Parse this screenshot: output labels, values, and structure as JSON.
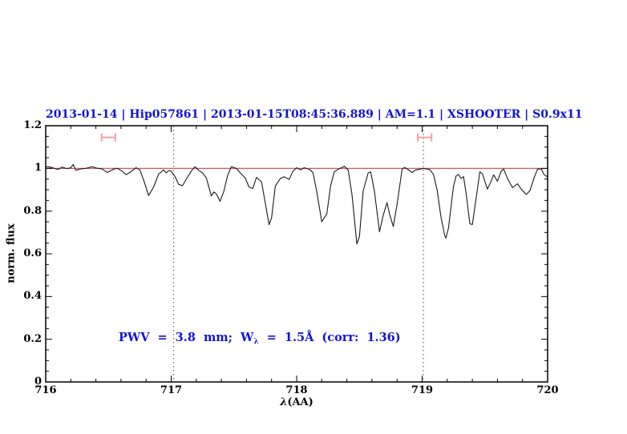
{
  "window": {
    "background": "#ffffff"
  },
  "title": {
    "text": "2013-01-14 | Hip057861 | 2013-01-15T08:45:36.889 | AM=1.1 | XSHOOTER | S0.9x11",
    "color": "#1414d2"
  },
  "annotation": {
    "prefix": "PWV = 3.8 mm; W",
    "subscript": "λ",
    "suffix": " = 1.5Å (corr: 1.36)",
    "color": "#1414d2"
  },
  "axes": {
    "ylabel": "norm. flux",
    "xlabel_lambda": "λ",
    "xlabel_rest": "(AA)",
    "x_tick_labels": [
      "716",
      "717",
      "718",
      "719",
      "720"
    ],
    "y_tick_labels": [
      "0",
      "0.2",
      "0.4",
      "0.6",
      "0.8",
      "1",
      "1.2"
    ]
  },
  "chart_data": {
    "type": "line",
    "title": "2013-01-14 | Hip057861 | 2013-01-15T08:45:36.889 | AM=1.1 | XSHOOTER | S0.9x11",
    "xlabel": "λ(AA)",
    "ylabel": "norm. flux",
    "xlim": [
      716,
      720
    ],
    "ylim": [
      0,
      1.2
    ],
    "x_major_ticks": [
      716,
      717,
      718,
      719,
      720
    ],
    "x_minor_step": 0.2,
    "y_major_ticks": [
      0,
      0.2,
      0.4,
      0.6,
      0.8,
      1.0,
      1.2
    ],
    "y_minor_step": 0.05,
    "grid": false,
    "frame_color": "#000000",
    "continuum": {
      "y": 1.0,
      "color": "#cc4747"
    },
    "vlines": [
      {
        "x": 717.02,
        "color": "#4a4a4a",
        "style": "dotted"
      },
      {
        "x": 719.01,
        "color": "#4a4a4a",
        "style": "dotted"
      }
    ],
    "range_markers": [
      {
        "x_center": 716.5,
        "x_halfwidth": 0.055,
        "y": 1.145,
        "cap_halfheight": 0.019,
        "color": "#f2a2a2"
      },
      {
        "x_center": 719.02,
        "x_halfwidth": 0.055,
        "y": 1.145,
        "cap_halfheight": 0.019,
        "color": "#f2a2a2"
      }
    ],
    "annotation_text": "PWV = 3.8 mm; W_λ = 1.5Å (corr: 1.36)",
    "annotation_xy": [
      716.58,
      0.19
    ],
    "series": [
      {
        "name": "telluric-spectrum",
        "color": "#1b1b1b",
        "x": [
          716.0,
          716.04,
          716.08,
          716.1,
          716.13,
          716.17,
          716.2,
          716.22,
          716.24,
          716.28,
          716.32,
          716.37,
          716.41,
          716.45,
          716.49,
          716.54,
          716.57,
          716.61,
          716.64,
          716.67,
          716.72,
          716.75,
          716.78,
          716.82,
          716.86,
          716.9,
          716.94,
          716.96,
          716.98,
          717.0,
          717.03,
          717.06,
          717.09,
          717.12,
          717.16,
          717.19,
          717.22,
          717.25,
          717.28,
          717.32,
          717.34,
          717.36,
          717.39,
          717.42,
          717.45,
          717.48,
          717.52,
          717.55,
          717.59,
          717.62,
          717.65,
          717.68,
          717.72,
          717.75,
          717.78,
          717.8,
          717.83,
          717.87,
          717.9,
          717.94,
          717.97,
          718.0,
          718.03,
          718.06,
          718.1,
          718.13,
          718.16,
          718.2,
          718.24,
          718.27,
          718.3,
          718.33,
          718.38,
          718.41,
          718.44,
          718.48,
          718.5,
          718.53,
          718.57,
          718.59,
          718.62,
          718.66,
          718.69,
          718.72,
          718.74,
          718.77,
          718.8,
          718.84,
          718.86,
          718.9,
          718.92,
          718.95,
          718.98,
          719.01,
          719.06,
          719.09,
          719.12,
          719.15,
          719.18,
          719.19,
          719.21,
          719.25,
          719.27,
          719.29,
          719.31,
          719.33,
          719.35,
          719.38,
          719.4,
          719.43,
          719.46,
          719.48,
          719.52,
          719.55,
          719.57,
          719.6,
          719.63,
          719.65,
          719.68,
          719.72,
          719.76,
          719.79,
          719.83,
          719.86,
          719.89,
          719.92,
          719.95,
          719.97,
          720.0
        ],
        "y": [
          1.008,
          1.006,
          0.998,
          0.996,
          1.006,
          0.999,
          1.004,
          1.018,
          0.991,
          0.998,
          1.0,
          1.008,
          1.001,
          0.997,
          0.981,
          0.996,
          1.001,
          0.987,
          0.971,
          0.981,
          1.003,
          0.993,
          0.946,
          0.873,
          0.913,
          0.973,
          0.993,
          0.979,
          0.99,
          0.987,
          0.962,
          0.925,
          0.919,
          0.949,
          0.987,
          1.008,
          0.991,
          0.979,
          0.956,
          0.871,
          0.89,
          0.881,
          0.846,
          0.893,
          0.968,
          1.008,
          1.0,
          0.979,
          0.956,
          0.913,
          0.906,
          0.958,
          0.937,
          0.837,
          0.737,
          0.768,
          0.918,
          0.953,
          0.961,
          0.948,
          0.987,
          1.003,
          0.993,
          1.003,
          0.996,
          0.981,
          0.893,
          0.75,
          0.787,
          0.918,
          0.984,
          0.996,
          1.01,
          0.993,
          0.881,
          0.646,
          0.681,
          0.893,
          0.979,
          0.984,
          0.893,
          0.703,
          0.781,
          0.84,
          0.787,
          0.728,
          0.831,
          0.996,
          1.005,
          0.99,
          0.981,
          0.993,
          0.996,
          1.0,
          0.995,
          0.972,
          0.897,
          0.772,
          0.685,
          0.674,
          0.722,
          0.916,
          0.965,
          0.972,
          0.953,
          0.962,
          0.885,
          0.741,
          0.737,
          0.86,
          0.984,
          0.975,
          0.903,
          0.94,
          0.97,
          0.94,
          0.987,
          0.997,
          0.953,
          0.91,
          0.928,
          0.903,
          0.878,
          0.897,
          0.953,
          0.997,
          0.997,
          0.972,
          0.96
        ]
      }
    ]
  }
}
